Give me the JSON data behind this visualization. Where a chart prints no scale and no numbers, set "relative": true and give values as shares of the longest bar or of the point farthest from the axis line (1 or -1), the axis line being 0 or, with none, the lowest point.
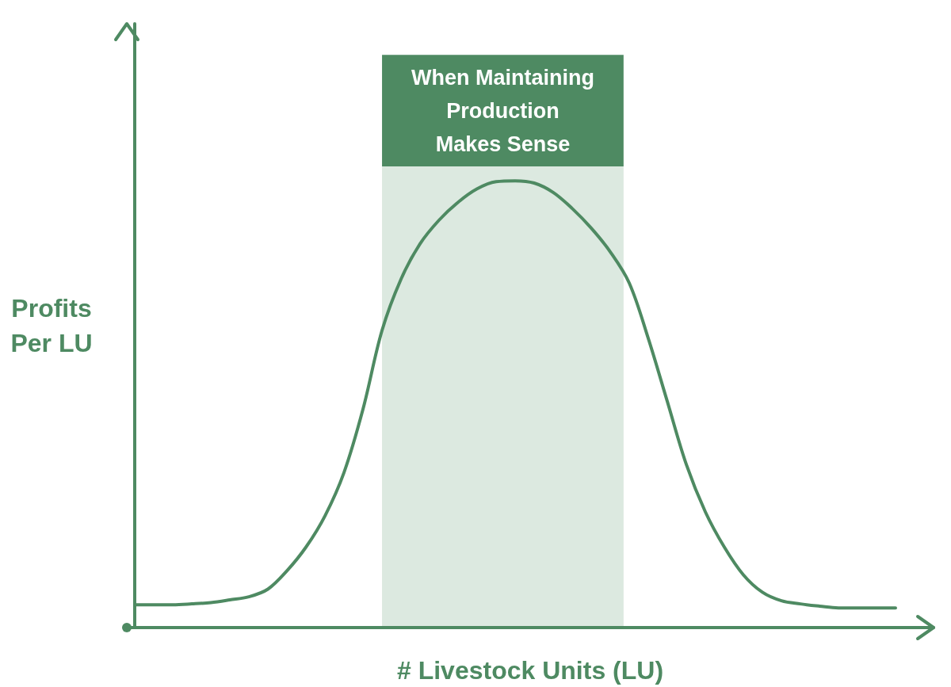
{
  "chart_data": {
    "type": "line",
    "relative": true,
    "xlabel": "# Livestock Units (LU)",
    "ylabel": "Profits\nPer LU",
    "marker": "none",
    "color": "#4e8a62",
    "categories": [
      null,
      null,
      null,
      null,
      null,
      null,
      null,
      null,
      null,
      null,
      null,
      null,
      null,
      null,
      null,
      null,
      null,
      null,
      null,
      null,
      null,
      null,
      null,
      null,
      null,
      null,
      null,
      null,
      null,
      null,
      null,
      null,
      null,
      null,
      null,
      null,
      null,
      null,
      null,
      null,
      null
    ],
    "values": [
      0.051,
      0.051,
      0.051,
      0.053,
      0.056,
      0.062,
      0.069,
      0.086,
      0.127,
      0.18,
      0.25,
      0.347,
      0.489,
      0.665,
      0.78,
      0.859,
      0.912,
      0.952,
      0.982,
      0.998,
      1,
      0.995,
      0.974,
      0.938,
      0.894,
      0.841,
      0.771,
      0.647,
      0.506,
      0.365,
      0.259,
      0.18,
      0.118,
      0.079,
      0.06,
      0.053,
      0.048,
      0.044,
      0.044,
      0.044,
      0.044
    ],
    "annotations": [
      "When Maintaining\nProduction\nMakes Sense"
    ]
  }
}
